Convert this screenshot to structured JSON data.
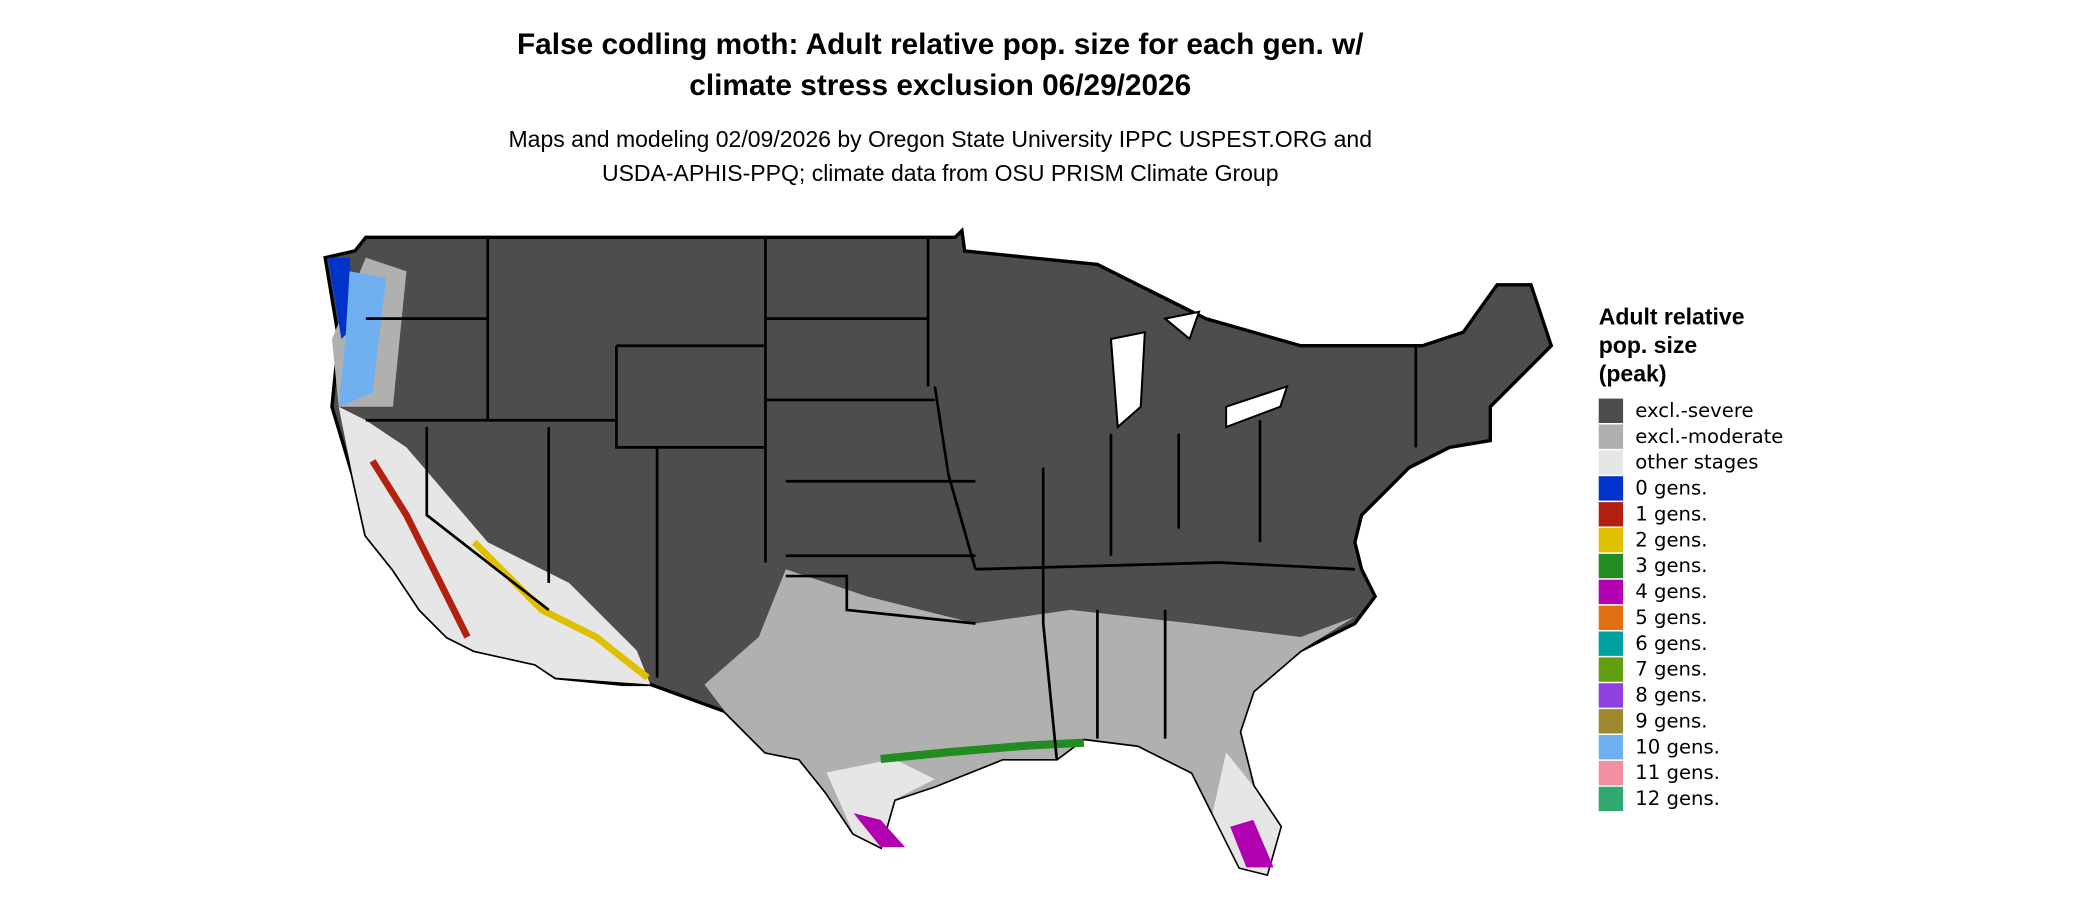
{
  "header": {
    "title_lines": [
      "False codling moth: Adult relative pop. size for each gen. w/",
      "climate stress exclusion 06/29/2026"
    ],
    "subtitle_lines": [
      "Maps and modeling 02/09/2026 by Oregon State University IPPC USPEST.ORG and",
      "USDA-APHIS-PPQ; climate data from OSU PRISM Climate Group"
    ]
  },
  "legend": {
    "title_lines": [
      "Adult relative",
      "pop. size",
      "(peak)"
    ],
    "items": [
      {
        "label": "excl.-severe",
        "color": "#4d4d4d"
      },
      {
        "label": "excl.-moderate",
        "color": "#b0b0b0"
      },
      {
        "label": "other stages",
        "color": "#e6e6e6"
      },
      {
        "label": "0 gens.",
        "color": "#0033cc"
      },
      {
        "label": "1 gens.",
        "color": "#b2200f"
      },
      {
        "label": "2 gens.",
        "color": "#dfc000"
      },
      {
        "label": "3 gens.",
        "color": "#228b22"
      },
      {
        "label": "4 gens.",
        "color": "#b000b0"
      },
      {
        "label": "5 gens.",
        "color": "#e0700f"
      },
      {
        "label": "6 gens.",
        "color": "#00a0a0"
      },
      {
        "label": "7 gens.",
        "color": "#60a010"
      },
      {
        "label": "8 gens.",
        "color": "#9040e0"
      },
      {
        "label": "9 gens.",
        "color": "#a08830"
      },
      {
        "label": "10 gens.",
        "color": "#70b0f0"
      },
      {
        "label": "11 gens.",
        "color": "#f090a0"
      },
      {
        "label": "12 gens.",
        "color": "#30a870"
      }
    ]
  }
}
